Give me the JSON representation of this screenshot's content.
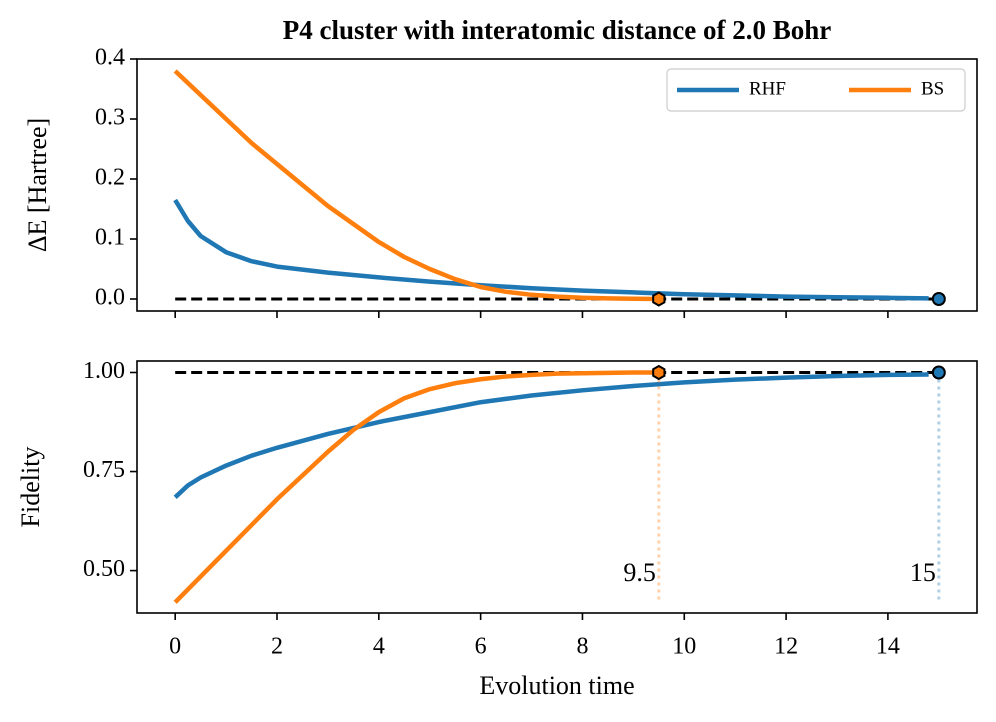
{
  "chart_data": [
    {
      "type": "line",
      "title": "P4 cluster with interatomic distance of 2.0 Bohr",
      "y_label": "ΔE [Hartree]",
      "xlim": [
        -0.75,
        15.75
      ],
      "xticks": [
        0,
        2,
        4,
        6,
        8,
        10,
        12,
        14
      ],
      "xticklabels": false,
      "ylim": [
        -0.02,
        0.4
      ],
      "yticks": [
        {
          "value": 0,
          "label": "0.0"
        },
        0.1,
        0.2,
        0.3,
        0.4
      ],
      "hline": 0,
      "legend": "upper right",
      "series": [
        {
          "name": "RHF",
          "color": "#1f77b4",
          "marker": "circle",
          "x": [
            0,
            0.25,
            0.5,
            1,
            1.5,
            2,
            3,
            4,
            5,
            6,
            7,
            8,
            9,
            10,
            11,
            12,
            13,
            14,
            14.8
          ],
          "values": [
            0.165,
            0.13,
            0.105,
            0.078,
            0.063,
            0.054,
            0.044,
            0.036,
            0.029,
            0.023,
            0.018,
            0.014,
            0.011,
            0.008,
            0.006,
            0.004,
            0.003,
            0.002,
            0.001
          ],
          "end_point": {
            "x": 15,
            "y": 0
          }
        },
        {
          "name": "BS",
          "color": "#ff7f0e",
          "marker": "hexagon",
          "x": [
            0,
            0.5,
            1,
            1.5,
            2,
            2.5,
            3,
            3.5,
            4,
            4.5,
            5,
            5.5,
            6,
            6.5,
            7,
            7.5,
            8,
            8.5,
            9,
            9.5
          ],
          "values": [
            0.38,
            0.34,
            0.3,
            0.26,
            0.225,
            0.19,
            0.155,
            0.125,
            0.095,
            0.07,
            0.05,
            0.033,
            0.02,
            0.012,
            0.007,
            0.004,
            0.002,
            0.001,
            0.0005,
            0
          ],
          "end_point": {
            "x": 9.5,
            "y": 0
          }
        }
      ]
    },
    {
      "type": "line",
      "x_label": "Evolution time",
      "y_label": "Fidelity",
      "xlim": [
        -0.75,
        15.75
      ],
      "xticks": [
        0,
        2,
        4,
        6,
        8,
        10,
        12,
        14
      ],
      "xticklabels": true,
      "ylim": [
        0.393,
        1.029
      ],
      "yticks": [
        {
          "value": 0.5,
          "label": "0.50"
        },
        {
          "value": 0.75,
          "label": "0.75"
        },
        {
          "value": 1,
          "label": "1.00"
        }
      ],
      "hline": 1,
      "series": [
        {
          "color": "#1f77b4",
          "marker": "circle",
          "x": [
            0,
            0.25,
            0.5,
            1,
            1.5,
            2,
            3,
            4,
            5,
            6,
            7,
            8,
            9,
            10,
            11,
            12,
            13,
            14,
            14.8
          ],
          "values": [
            0.685,
            0.715,
            0.735,
            0.765,
            0.79,
            0.81,
            0.845,
            0.875,
            0.9,
            0.925,
            0.942,
            0.955,
            0.966,
            0.975,
            0.982,
            0.987,
            0.991,
            0.994,
            0.995
          ],
          "end_point": {
            "x": 15,
            "y": 1
          }
        },
        {
          "color": "#ff7f0e",
          "marker": "hexagon",
          "x": [
            0,
            0.5,
            1,
            1.5,
            2,
            2.5,
            3,
            3.5,
            4,
            4.5,
            5,
            5.5,
            6,
            6.5,
            7,
            7.5,
            8,
            8.5,
            9,
            9.5
          ],
          "values": [
            0.42,
            0.485,
            0.55,
            0.615,
            0.68,
            0.74,
            0.8,
            0.855,
            0.9,
            0.935,
            0.958,
            0.973,
            0.983,
            0.99,
            0.994,
            0.997,
            0.998,
            0.999,
            1.0,
            1.0
          ],
          "end_point": {
            "x": 9.5,
            "y": 1
          }
        }
      ],
      "annotations": [
        {
          "text": "9.5",
          "x": 9.5,
          "color": "#ff7f0e"
        },
        {
          "text": "15",
          "x": 15,
          "color": "#1f77b4"
        }
      ]
    }
  ]
}
